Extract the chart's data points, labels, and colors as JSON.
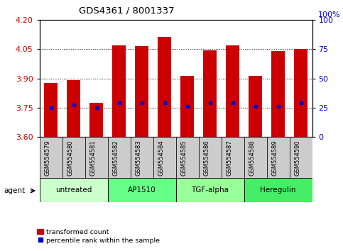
{
  "title": "GDS4361 / 8001337",
  "samples": [
    "GSM554579",
    "GSM554580",
    "GSM554581",
    "GSM554582",
    "GSM554583",
    "GSM554584",
    "GSM554585",
    "GSM554586",
    "GSM554587",
    "GSM554588",
    "GSM554589",
    "GSM554590"
  ],
  "bar_tops": [
    3.875,
    3.89,
    3.775,
    4.07,
    4.065,
    4.115,
    3.915,
    4.045,
    4.07,
    3.915,
    4.04,
    4.05
  ],
  "bar_bottom": 3.6,
  "blue_dots": [
    3.75,
    3.765,
    3.75,
    3.775,
    3.775,
    3.775,
    3.755,
    3.775,
    3.775,
    3.755,
    3.755,
    3.775
  ],
  "ylim_left": [
    3.6,
    4.2
  ],
  "ylim_right": [
    0,
    100
  ],
  "yticks_left": [
    3.6,
    3.75,
    3.9,
    4.05,
    4.2
  ],
  "yticks_right": [
    0,
    25,
    50,
    75,
    100
  ],
  "groups": [
    {
      "label": "untreated",
      "start": 0,
      "end": 3,
      "color": "#ccffcc"
    },
    {
      "label": "AP1510",
      "start": 3,
      "end": 6,
      "color": "#66ff88"
    },
    {
      "label": "TGF-alpha",
      "start": 6,
      "end": 9,
      "color": "#99ff99"
    },
    {
      "label": "Heregulin",
      "start": 9,
      "end": 12,
      "color": "#44ee66"
    }
  ],
  "bar_color": "#cc0000",
  "dot_color": "#0000cc",
  "bg_color": "#ffffff",
  "tick_color_left": "#cc0000",
  "tick_color_right": "#0000cc",
  "sample_box_color": "#cccccc",
  "legend_items": [
    "transformed count",
    "percentile rank within the sample"
  ],
  "agent_label": "agent"
}
